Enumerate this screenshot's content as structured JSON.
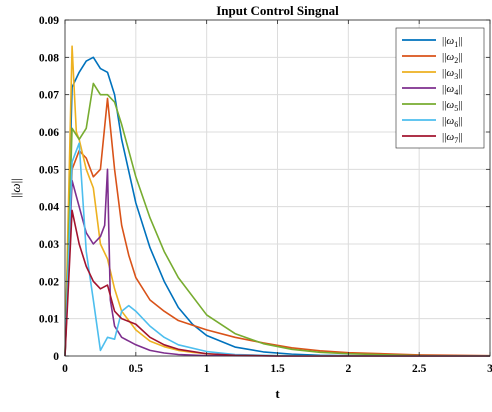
{
  "chart_data": {
    "type": "line",
    "title": "Input Control Singnal",
    "xlabel": "t",
    "ylabel": "||ω||",
    "xlim": [
      0,
      3
    ],
    "ylim": [
      0,
      0.09
    ],
    "xticks": [
      "0",
      "0.5",
      "1",
      "1.5",
      "2",
      "2.5",
      "3"
    ],
    "xtick_values": [
      0,
      0.5,
      1,
      1.5,
      2,
      2.5,
      3
    ],
    "yticks": [
      "0",
      "0.01",
      "0.02",
      "0.03",
      "0.04",
      "0.05",
      "0.06",
      "0.07",
      "0.08",
      "0.09"
    ],
    "ytick_values": [
      0,
      0.01,
      0.02,
      0.03,
      0.04,
      0.05,
      0.06,
      0.07,
      0.08,
      0.09
    ],
    "grid": true,
    "legend_position": "top-right",
    "series": [
      {
        "name": "||ω1||",
        "color": "#0072BD",
        "x": [
          0,
          0.05,
          0.1,
          0.15,
          0.2,
          0.25,
          0.3,
          0.35,
          0.4,
          0.5,
          0.6,
          0.7,
          0.8,
          0.9,
          1.0,
          1.2,
          1.4,
          1.6,
          1.8,
          2.0,
          2.5,
          3.0
        ],
        "y": [
          0,
          0.072,
          0.076,
          0.079,
          0.08,
          0.077,
          0.076,
          0.07,
          0.058,
          0.041,
          0.029,
          0.02,
          0.013,
          0.0085,
          0.0055,
          0.0024,
          0.0011,
          0.0005,
          0.0002,
          0.0001,
          0,
          0
        ]
      },
      {
        "name": "||ω2||",
        "color": "#D95319",
        "x": [
          0,
          0.05,
          0.1,
          0.15,
          0.2,
          0.25,
          0.3,
          0.35,
          0.4,
          0.45,
          0.5,
          0.6,
          0.7,
          0.8,
          1.0,
          1.2,
          1.4,
          1.6,
          1.8,
          2.0,
          2.5,
          3.0
        ],
        "y": [
          0,
          0.05,
          0.055,
          0.053,
          0.048,
          0.05,
          0.069,
          0.05,
          0.035,
          0.027,
          0.021,
          0.015,
          0.012,
          0.0095,
          0.007,
          0.005,
          0.0035,
          0.0022,
          0.0014,
          0.0009,
          0.0003,
          0.0001
        ]
      },
      {
        "name": "||ω3||",
        "color": "#EDB120",
        "x": [
          0,
          0.05,
          0.08,
          0.1,
          0.15,
          0.2,
          0.25,
          0.3,
          0.35,
          0.4,
          0.5,
          0.6,
          0.7,
          0.8,
          0.9,
          1.0,
          1.2,
          1.5,
          2.0,
          3.0
        ],
        "y": [
          0,
          0.083,
          0.06,
          0.058,
          0.05,
          0.045,
          0.03,
          0.026,
          0.018,
          0.012,
          0.007,
          0.004,
          0.0025,
          0.0015,
          0.001,
          0.0006,
          0.0002,
          0.0001,
          0,
          0
        ]
      },
      {
        "name": "||ω4||",
        "color": "#7E2F8E",
        "x": [
          0,
          0.05,
          0.1,
          0.15,
          0.2,
          0.25,
          0.28,
          0.3,
          0.32,
          0.35,
          0.4,
          0.5,
          0.6,
          0.7,
          0.8,
          1.0,
          1.5,
          3.0
        ],
        "y": [
          0,
          0.047,
          0.04,
          0.033,
          0.03,
          0.032,
          0.035,
          0.05,
          0.015,
          0.008,
          0.005,
          0.003,
          0.0015,
          0.0008,
          0.0004,
          0.0001,
          0,
          0
        ]
      },
      {
        "name": "||ω5||",
        "color": "#77AC30",
        "x": [
          0,
          0.05,
          0.1,
          0.15,
          0.2,
          0.25,
          0.3,
          0.35,
          0.4,
          0.5,
          0.6,
          0.7,
          0.8,
          1.0,
          1.2,
          1.4,
          1.6,
          1.8,
          2.0,
          2.5,
          3.0
        ],
        "y": [
          0,
          0.061,
          0.058,
          0.061,
          0.073,
          0.07,
          0.07,
          0.068,
          0.062,
          0.048,
          0.037,
          0.028,
          0.021,
          0.011,
          0.006,
          0.0033,
          0.0018,
          0.001,
          0.0006,
          0.0001,
          0
        ]
      },
      {
        "name": "||ω6||",
        "color": "#4DBEEE",
        "x": [
          0,
          0.05,
          0.1,
          0.15,
          0.2,
          0.25,
          0.3,
          0.35,
          0.4,
          0.45,
          0.5,
          0.6,
          0.7,
          0.8,
          1.0,
          1.2,
          1.5,
          2.0,
          3.0
        ],
        "y": [
          0,
          0.052,
          0.057,
          0.028,
          0.015,
          0.0015,
          0.005,
          0.0045,
          0.012,
          0.0135,
          0.012,
          0.008,
          0.005,
          0.003,
          0.0012,
          0.0004,
          0.0001,
          0,
          0
        ]
      },
      {
        "name": "||ω7||",
        "color": "#A2142F",
        "x": [
          0,
          0.05,
          0.1,
          0.15,
          0.2,
          0.25,
          0.3,
          0.35,
          0.4,
          0.5,
          0.6,
          0.7,
          0.8,
          1.0,
          1.2,
          1.5,
          2.0,
          3.0
        ],
        "y": [
          0,
          0.039,
          0.03,
          0.024,
          0.02,
          0.018,
          0.019,
          0.012,
          0.01,
          0.0085,
          0.005,
          0.003,
          0.0018,
          0.0006,
          0.0002,
          0,
          0,
          0
        ]
      }
    ]
  }
}
